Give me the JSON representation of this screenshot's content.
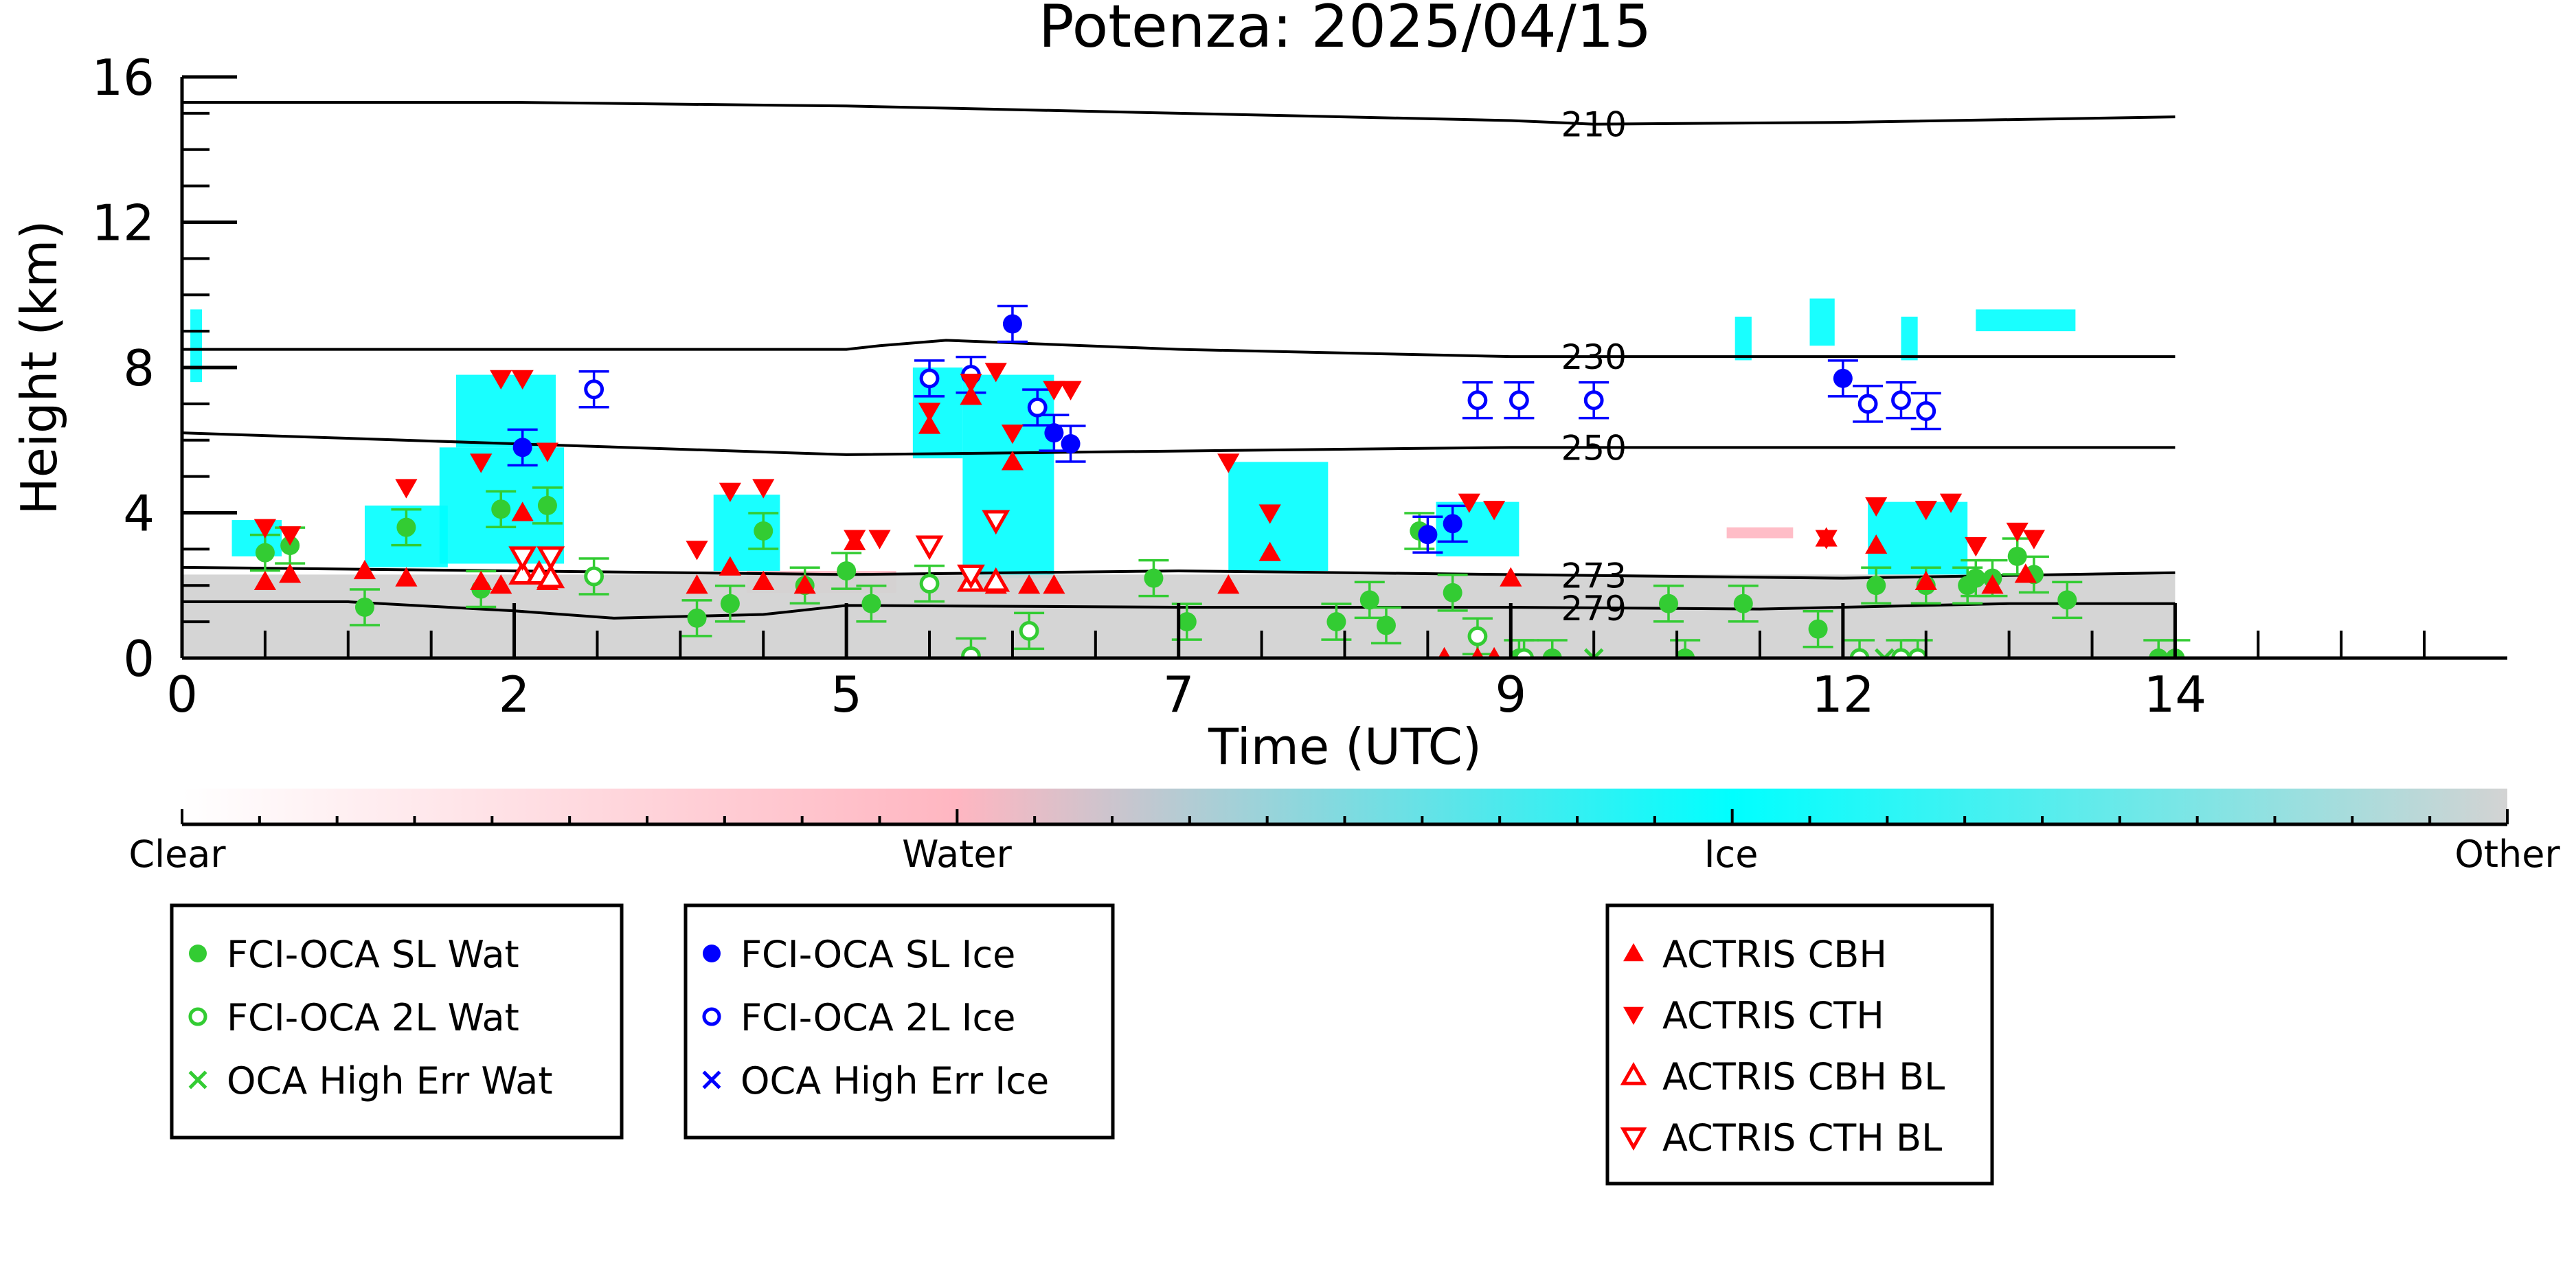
{
  "chart_data": {
    "type": "scatter",
    "title": "Potenza: 2025/04/15",
    "xlabel": "Time (UTC)",
    "ylabel": "Height (km)",
    "xlim": [
      0,
      14
    ],
    "ylim": [
      0,
      16
    ],
    "x_ticks": [
      "0",
      "2",
      "5",
      "7",
      "9",
      "12",
      "14"
    ],
    "x_tick_values": [
      0,
      2,
      4,
      6,
      8,
      10,
      12
    ],
    "y_ticks": [
      "0",
      "4",
      "8",
      "12",
      "16"
    ],
    "y_tick_values": [
      0,
      4,
      8,
      12,
      16
    ],
    "colorbar": {
      "labels": [
        "Clear",
        "Water",
        "Ice",
        "Other"
      ],
      "colors": [
        "#ffffff",
        "#ffb6c1",
        "#00ffff",
        "#d3d3d3"
      ]
    },
    "contours": [
      {
        "label": "210",
        "x": [
          0,
          2,
          4,
          6,
          8,
          8.5,
          10,
          12
        ],
        "y": [
          15.3,
          15.3,
          15.2,
          15.0,
          14.8,
          14.7,
          14.75,
          14.9
        ],
        "label_x": 8.5
      },
      {
        "label": "230",
        "x": [
          0,
          2,
          4,
          4.2,
          4.6,
          6,
          8,
          10,
          12
        ],
        "y": [
          8.5,
          8.5,
          8.5,
          8.6,
          8.75,
          8.5,
          8.3,
          8.3,
          8.3
        ],
        "label_x": 8.5
      },
      {
        "label": "250",
        "x": [
          0,
          2,
          4,
          6,
          8,
          10,
          12
        ],
        "y": [
          6.2,
          5.9,
          5.6,
          5.7,
          5.8,
          5.8,
          5.8
        ],
        "label_x": 8.5
      },
      {
        "label": "273",
        "x": [
          0,
          2,
          4,
          6,
          8,
          10,
          12
        ],
        "y": [
          2.5,
          2.4,
          2.3,
          2.4,
          2.3,
          2.2,
          2.35
        ],
        "label_x": 8.5
      },
      {
        "label": "279",
        "x": [
          0,
          1,
          2,
          2.6,
          3.5,
          4,
          6,
          8,
          9.5,
          10,
          11,
          12
        ],
        "y": [
          1.55,
          1.55,
          1.3,
          1.1,
          1.2,
          1.45,
          1.4,
          1.4,
          1.35,
          1.4,
          1.5,
          1.5
        ],
        "label_x": 8.5
      }
    ],
    "cloud_patches": [
      {
        "class": "Ice",
        "x0": 0.05,
        "x1": 0.12,
        "y0": 7.6,
        "y1": 9.6
      },
      {
        "class": "Ice",
        "x0": 0.3,
        "x1": 0.6,
        "y0": 2.8,
        "y1": 3.8
      },
      {
        "class": "Ice",
        "x0": 1.1,
        "x1": 1.6,
        "y0": 2.5,
        "y1": 4.2
      },
      {
        "class": "Ice",
        "x0": 1.55,
        "x1": 2.3,
        "y0": 2.6,
        "y1": 5.8
      },
      {
        "class": "Ice",
        "x0": 1.65,
        "x1": 2.25,
        "y0": 5.8,
        "y1": 7.8
      },
      {
        "class": "Ice",
        "x0": 3.2,
        "x1": 3.6,
        "y0": 2.4,
        "y1": 4.5
      },
      {
        "class": "Ice",
        "x0": 4.4,
        "x1": 4.7,
        "y0": 5.5,
        "y1": 8.0
      },
      {
        "class": "Ice",
        "x0": 4.7,
        "x1": 5.25,
        "y0": 2.2,
        "y1": 7.8
      },
      {
        "class": "Ice",
        "x0": 6.3,
        "x1": 6.9,
        "y0": 2.4,
        "y1": 5.4
      },
      {
        "class": "Ice",
        "x0": 7.55,
        "x1": 8.05,
        "y0": 2.8,
        "y1": 4.3
      },
      {
        "class": "Ice",
        "x0": 9.35,
        "x1": 9.45,
        "y0": 8.2,
        "y1": 9.4
      },
      {
        "class": "Ice",
        "x0": 9.8,
        "x1": 9.95,
        "y0": 8.6,
        "y1": 9.9
      },
      {
        "class": "Ice",
        "x0": 10.35,
        "x1": 10.45,
        "y0": 8.2,
        "y1": 9.4
      },
      {
        "class": "Ice",
        "x0": 10.8,
        "x1": 11.4,
        "y0": 9.0,
        "y1": 9.6
      },
      {
        "class": "Ice",
        "x0": 10.15,
        "x1": 10.75,
        "y0": 2.3,
        "y1": 4.3
      },
      {
        "class": "Water",
        "x0": 3.4,
        "x1": 4.3,
        "y0": 1.8,
        "y1": 2.4
      },
      {
        "class": "Water",
        "x0": 9.3,
        "x1": 9.7,
        "y0": 3.3,
        "y1": 3.6
      },
      {
        "class": "Other",
        "x0": 0,
        "x1": 12,
        "y0": 0,
        "y1": 2.3
      }
    ],
    "series": [
      {
        "name": "FCI-OCA SL Wat",
        "color": "#33cc33",
        "marker": "filled-circle",
        "x": [
          0.5,
          0.65,
          1.1,
          1.35,
          1.8,
          1.92,
          2.2,
          3.1,
          3.3,
          3.5,
          3.75,
          4.0,
          4.15,
          5.85,
          6.05,
          6.95,
          7.15,
          7.25,
          7.45,
          7.65,
          8.05,
          8.25,
          8.95,
          9.05,
          9.4,
          9.85,
          10.2,
          10.5,
          10.75,
          10.8,
          10.9,
          11.05,
          11.15,
          11.35,
          11.9,
          12.0
        ],
        "y": [
          2.9,
          3.1,
          1.4,
          3.6,
          1.9,
          4.1,
          4.2,
          1.1,
          1.5,
          3.5,
          2.0,
          2.4,
          1.5,
          2.2,
          1.0,
          1.0,
          1.6,
          0.9,
          3.5,
          1.8,
          0.0,
          0.0,
          1.5,
          0.0,
          1.5,
          0.8,
          2.0,
          2.0,
          2.0,
          2.2,
          2.2,
          2.8,
          2.3,
          1.6,
          0.0,
          0.0
        ]
      },
      {
        "name": "FCI-OCA 2L Wat",
        "color": "#33cc33",
        "marker": "open-circle",
        "x": [
          2.48,
          4.5,
          4.75,
          5.1,
          7.8,
          8.08,
          10.1,
          10.35,
          10.45
        ],
        "y": [
          2.25,
          2.05,
          0.05,
          0.75,
          0.6,
          0.0,
          0.0,
          0.0,
          0.0
        ]
      },
      {
        "name": "OCA High Err Wat",
        "color": "#33cc33",
        "marker": "x",
        "x": [
          8.5,
          10.25
        ],
        "y": [
          0.0,
          0.0
        ]
      },
      {
        "name": "FCI-OCA SL Ice",
        "color": "#0000ff",
        "marker": "filled-circle",
        "x": [
          2.05,
          5.0,
          5.25,
          5.35,
          7.5,
          7.65,
          10.0
        ],
        "y": [
          5.8,
          9.2,
          6.2,
          5.9,
          3.4,
          3.7,
          7.7
        ]
      },
      {
        "name": "FCI-OCA 2L Ice",
        "color": "#0000ff",
        "marker": "open-circle",
        "x": [
          2.48,
          4.5,
          4.75,
          5.15,
          7.8,
          8.05,
          8.5,
          10.15,
          10.35,
          10.5
        ],
        "y": [
          7.4,
          7.7,
          7.8,
          6.9,
          7.1,
          7.1,
          7.1,
          7.0,
          7.1,
          6.8
        ]
      },
      {
        "name": "OCA High Err Ice",
        "color": "#0000ff",
        "marker": "x",
        "x": [],
        "y": []
      },
      {
        "name": "ACTRIS CBH",
        "color": "#ff0000",
        "marker": "filled-triangle-up",
        "x": [
          0.5,
          0.65,
          1.1,
          1.35,
          1.8,
          1.92,
          2.05,
          2.2,
          3.1,
          3.3,
          3.5,
          3.75,
          4.05,
          4.5,
          4.75,
          4.9,
          5.0,
          5.1,
          5.25,
          6.3,
          6.55,
          7.6,
          7.8,
          7.9,
          8.0,
          9.9,
          10.2,
          10.5,
          10.9,
          11.1
        ],
        "y": [
          2.1,
          2.3,
          2.4,
          2.2,
          2.1,
          2.0,
          4.0,
          2.1,
          2.0,
          2.5,
          2.1,
          2.0,
          3.2,
          6.4,
          7.2,
          2.0,
          5.4,
          2.0,
          2.0,
          2.0,
          2.9,
          0.0,
          0.0,
          0.0,
          2.2,
          3.3,
          3.1,
          2.1,
          2.0,
          2.3
        ]
      },
      {
        "name": "ACTRIS CTH",
        "color": "#ff0000",
        "marker": "filled-triangle-down",
        "x": [
          0.5,
          0.65,
          1.35,
          1.8,
          1.92,
          2.05,
          2.2,
          3.1,
          3.3,
          3.5,
          4.05,
          4.2,
          4.5,
          4.75,
          4.9,
          5.0,
          5.25,
          5.35,
          6.3,
          6.55,
          7.75,
          7.9,
          9.9,
          10.2,
          10.5,
          10.65,
          10.8,
          11.05,
          11.15
        ],
        "y": [
          3.6,
          3.4,
          4.7,
          5.4,
          7.7,
          7.7,
          5.7,
          3.0,
          4.6,
          4.7,
          3.3,
          3.3,
          6.8,
          7.6,
          7.9,
          6.2,
          7.4,
          7.4,
          5.4,
          4.0,
          4.3,
          4.1,
          3.3,
          4.2,
          4.1,
          4.3,
          3.1,
          3.5,
          3.3
        ]
      },
      {
        "name": "ACTRIS CBH BL",
        "color": "#ff0000",
        "marker": "open-triangle-up",
        "x": [
          2.05,
          2.15,
          2.22,
          4.75,
          4.9
        ],
        "y": [
          2.3,
          2.3,
          2.2,
          2.1,
          2.1
        ]
      },
      {
        "name": "ACTRIS CTH BL",
        "color": "#ff0000",
        "marker": "open-triangle-down",
        "x": [
          2.05,
          2.22,
          4.5,
          4.75,
          4.9
        ],
        "y": [
          2.8,
          2.8,
          3.1,
          2.3,
          3.8
        ]
      }
    ],
    "legend_groups": [
      [
        "FCI-OCA SL Wat",
        "FCI-OCA 2L Wat",
        "OCA High Err Wat"
      ],
      [
        "FCI-OCA SL Ice",
        "FCI-OCA 2L Ice",
        "OCA High Err Ice"
      ],
      [
        "ACTRIS CBH",
        "ACTRIS CTH",
        "ACTRIS CBH BL",
        "ACTRIS CTH BL"
      ]
    ]
  }
}
